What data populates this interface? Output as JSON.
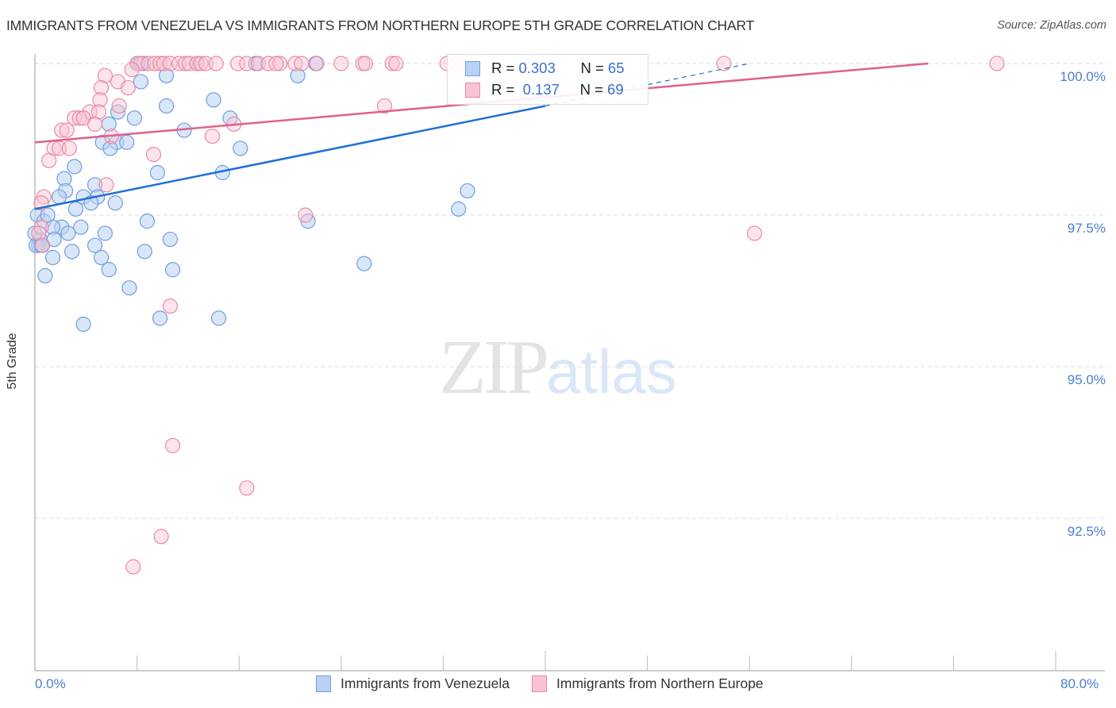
{
  "header": {
    "title": "IMMIGRANTS FROM VENEZUELA VS IMMIGRANTS FROM NORTHERN EUROPE 5TH GRADE CORRELATION CHART",
    "source": "Source: ZipAtlas.com"
  },
  "watermark": {
    "zip": "ZIP",
    "atlas": "atlas"
  },
  "axes": {
    "ylabel": "5th Grade",
    "yticks": [
      "100.0%",
      "97.5%",
      "95.0%",
      "92.5%"
    ],
    "xticks": [
      "0.0%",
      "80.0%"
    ]
  },
  "legend": {
    "series": [
      {
        "name": "Immigrants from Venezuela",
        "r_label": "R =",
        "r_value": "0.303",
        "n_label": "N =",
        "n_value": "65",
        "fill": "#b9d1f3",
        "stroke": "#6f9ee0"
      },
      {
        "name": "Immigrants from Northern Europe",
        "r_label": "R =",
        "r_value": "0.137",
        "n_label": "N =",
        "n_value": "69",
        "fill": "#f9c3d3",
        "stroke": "#e98aa7"
      }
    ]
  },
  "colors": {
    "blue_line": "#1f6fd6",
    "pink_line": "#e0608a",
    "tick_label": "#4a7fd4",
    "grid": "#dddddd"
  },
  "chart_data": {
    "type": "scatter",
    "title": "IMMIGRANTS FROM VENEZUELA VS IMMIGRANTS FROM NORTHERN EUROPE 5TH GRADE CORRELATION CHART",
    "xlabel": "",
    "ylabel": "5th Grade",
    "xlim": [
      0,
      80
    ],
    "ylim": [
      90.2,
      100.4
    ],
    "grid": true,
    "legend_position": "top-center",
    "series": [
      {
        "name": "Immigrants from Venezuela",
        "color": "#6f9ee0",
        "R": 0.303,
        "N": 65,
        "trend": {
          "x0": 0,
          "y0": 97.6,
          "x1": 40,
          "y1": 99.3,
          "dashed_to": {
            "x": 56,
            "y": 100.0
          }
        },
        "points": [
          [
            8.1,
            100
          ],
          [
            8.5,
            100
          ],
          [
            12.7,
            100
          ],
          [
            17.3,
            100
          ],
          [
            22.0,
            100
          ],
          [
            8.3,
            99.7
          ],
          [
            10.3,
            99.8
          ],
          [
            20.6,
            99.8
          ],
          [
            36.1,
            99.6
          ],
          [
            10.3,
            99.3
          ],
          [
            14.0,
            99.4
          ],
          [
            6.5,
            99.2
          ],
          [
            7.8,
            99.1
          ],
          [
            15.3,
            99.1
          ],
          [
            5.8,
            99.0
          ],
          [
            11.7,
            98.9
          ],
          [
            5.3,
            98.7
          ],
          [
            6.4,
            98.7
          ],
          [
            7.2,
            98.7
          ],
          [
            16.1,
            98.6
          ],
          [
            5.9,
            98.6
          ],
          [
            3.1,
            98.3
          ],
          [
            9.6,
            98.2
          ],
          [
            14.7,
            98.2
          ],
          [
            2.3,
            98.1
          ],
          [
            4.7,
            98.0
          ],
          [
            2.4,
            97.9
          ],
          [
            4.9,
            97.8
          ],
          [
            33.9,
            97.9
          ],
          [
            1.9,
            97.8
          ],
          [
            3.8,
            97.8
          ],
          [
            4.4,
            97.7
          ],
          [
            6.3,
            97.7
          ],
          [
            3.2,
            97.6
          ],
          [
            0.2,
            97.5
          ],
          [
            33.2,
            97.6
          ],
          [
            0.7,
            97.4
          ],
          [
            2.1,
            97.3
          ],
          [
            3.6,
            97.3
          ],
          [
            8.8,
            97.4
          ],
          [
            21.4,
            97.4
          ],
          [
            1.4,
            97.3
          ],
          [
            2.6,
            97.2
          ],
          [
            5.5,
            97.2
          ],
          [
            0.4,
            97.1
          ],
          [
            1.5,
            97.1
          ],
          [
            4.7,
            97.0
          ],
          [
            10.6,
            97.1
          ],
          [
            0.3,
            97.0
          ],
          [
            0.1,
            97.0
          ],
          [
            2.9,
            96.9
          ],
          [
            8.6,
            96.9
          ],
          [
            1.4,
            96.8
          ],
          [
            5.2,
            96.8
          ],
          [
            25.8,
            96.7
          ],
          [
            5.8,
            96.6
          ],
          [
            10.8,
            96.6
          ],
          [
            0.8,
            96.5
          ],
          [
            7.4,
            96.3
          ],
          [
            9.8,
            95.8
          ],
          [
            14.4,
            95.8
          ],
          [
            3.8,
            95.7
          ],
          [
            0.0,
            97.2
          ],
          [
            0.5,
            97.0
          ],
          [
            1.0,
            97.5
          ]
        ]
      },
      {
        "name": "Immigrants from Northern Europe",
        "color": "#e98aa7",
        "R": 0.137,
        "N": 69,
        "trend": {
          "x0": 0,
          "y0": 98.7,
          "x1": 70,
          "y1": 100.0
        },
        "points": [
          [
            8.0,
            100
          ],
          [
            8.3,
            100
          ],
          [
            8.9,
            100
          ],
          [
            9.4,
            100
          ],
          [
            9.8,
            100
          ],
          [
            10.1,
            100
          ],
          [
            10.6,
            100
          ],
          [
            11.3,
            100
          ],
          [
            11.8,
            100
          ],
          [
            12.1,
            100
          ],
          [
            12.7,
            100
          ],
          [
            13.0,
            100
          ],
          [
            13.4,
            100
          ],
          [
            14.2,
            100
          ],
          [
            15.9,
            100
          ],
          [
            16.6,
            100
          ],
          [
            17.5,
            100
          ],
          [
            18.3,
            100
          ],
          [
            19.2,
            100
          ],
          [
            20.4,
            100
          ],
          [
            20.9,
            100
          ],
          [
            22.1,
            100
          ],
          [
            25.7,
            100
          ],
          [
            25.9,
            100
          ],
          [
            28.0,
            100
          ],
          [
            28.3,
            100
          ],
          [
            33.0,
            100
          ],
          [
            54.0,
            100
          ],
          [
            75.4,
            100
          ],
          [
            7.6,
            99.9
          ],
          [
            5.5,
            99.8
          ],
          [
            6.5,
            99.7
          ],
          [
            5.2,
            99.6
          ],
          [
            7.3,
            99.6
          ],
          [
            5.1,
            99.4
          ],
          [
            6.6,
            99.3
          ],
          [
            27.4,
            99.3
          ],
          [
            4.3,
            99.2
          ],
          [
            5.0,
            99.2
          ],
          [
            3.1,
            99.1
          ],
          [
            3.5,
            99.1
          ],
          [
            3.8,
            99.1
          ],
          [
            4.7,
            99.0
          ],
          [
            15.6,
            99.0
          ],
          [
            2.1,
            98.9
          ],
          [
            2.5,
            98.9
          ],
          [
            13.9,
            98.8
          ],
          [
            6.0,
            98.8
          ],
          [
            1.5,
            98.6
          ],
          [
            1.9,
            98.6
          ],
          [
            2.7,
            98.6
          ],
          [
            9.3,
            98.5
          ],
          [
            1.1,
            98.4
          ],
          [
            5.6,
            98.0
          ],
          [
            0.7,
            97.8
          ],
          [
            0.5,
            97.7
          ],
          [
            21.2,
            97.5
          ],
          [
            56.4,
            97.2
          ],
          [
            0.5,
            97.3
          ],
          [
            0.3,
            97.2
          ],
          [
            0.6,
            97.0
          ],
          [
            10.6,
            96.0
          ],
          [
            10.8,
            93.7
          ],
          [
            16.6,
            93.0
          ],
          [
            9.9,
            92.2
          ],
          [
            7.7,
            91.7
          ],
          [
            18.9,
            100
          ],
          [
            24.0,
            100
          ],
          [
            32.3,
            100
          ]
        ]
      }
    ]
  }
}
